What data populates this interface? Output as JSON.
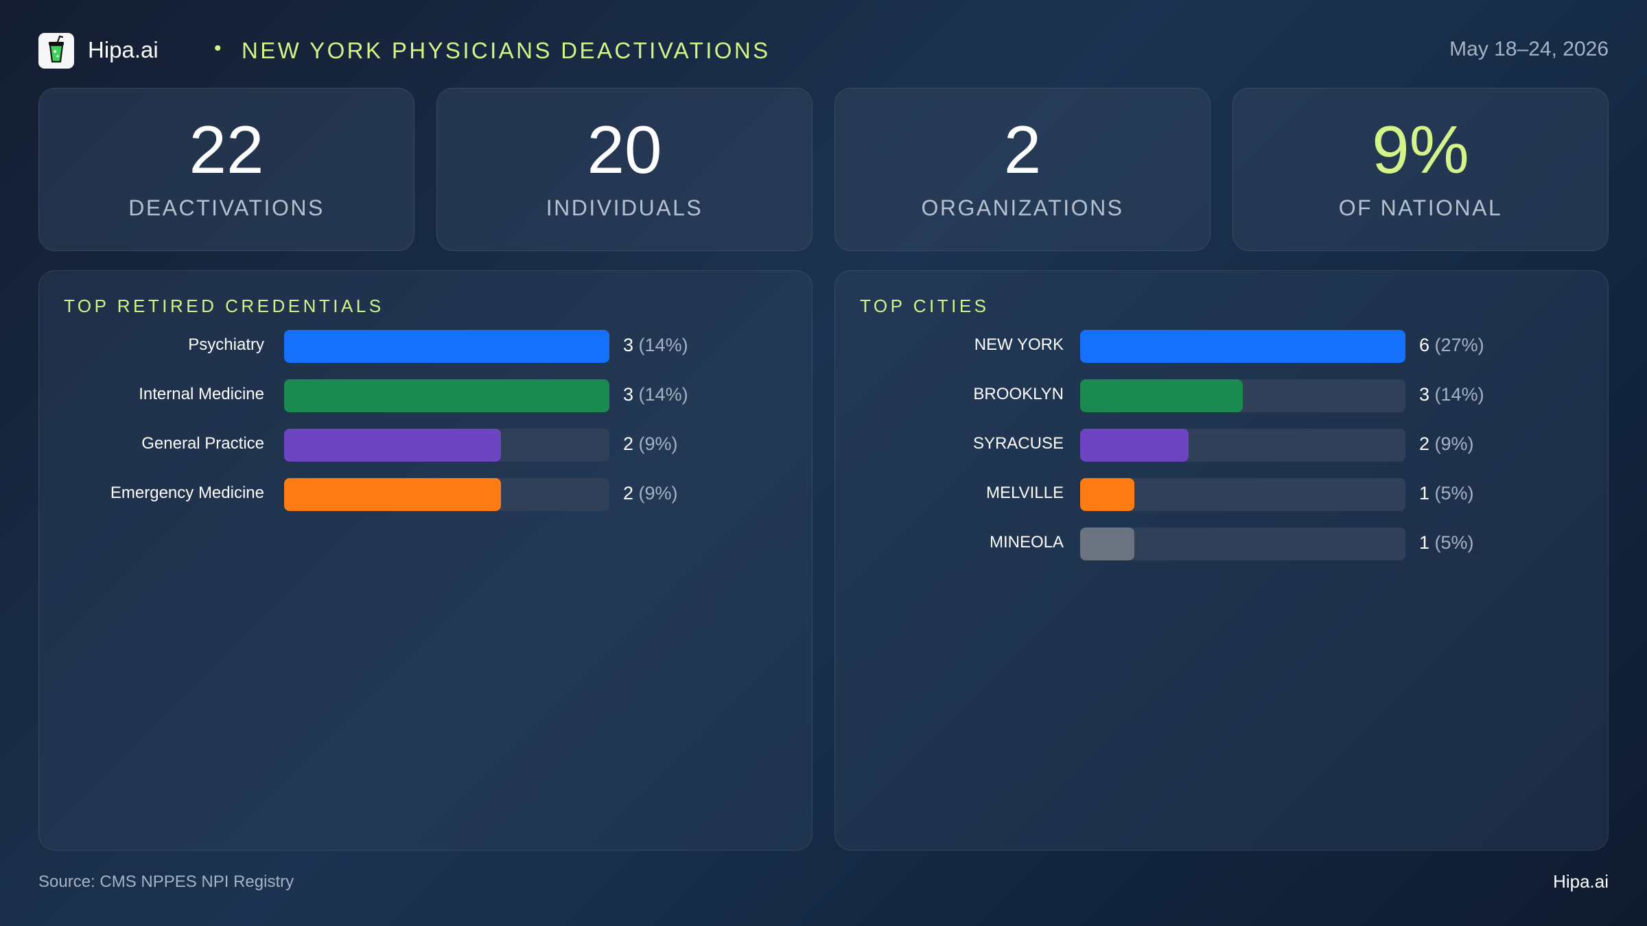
{
  "header": {
    "brand": "Hipa.ai",
    "separator": "•",
    "title": "NEW YORK PHYSICIANS DEACTIVATIONS",
    "date": "May 18–24, 2026",
    "logo_icon": "cup-logo-icon"
  },
  "stats": [
    {
      "value": "22",
      "label": "DEACTIVATIONS"
    },
    {
      "value": "20",
      "label": "INDIVIDUALS"
    },
    {
      "value": "2",
      "label": "ORGANIZATIONS"
    },
    {
      "value": "9%",
      "label": "OF NATIONAL"
    }
  ],
  "colors": {
    "accent": "#d4f48a",
    "blue": "#1570fb",
    "green": "#1b8a50",
    "purple": "#6d45c2",
    "orange": "#fd7d14",
    "gray": "#6b7280",
    "track": "#2f4058"
  },
  "chart_data": [
    {
      "type": "bar",
      "orientation": "horizontal",
      "title": "TOP RETIRED CREDENTIALS",
      "categories": [
        "Psychiatry",
        "Internal Medicine",
        "General Practice",
        "Emergency Medicine"
      ],
      "values": [
        3,
        3,
        2,
        2
      ],
      "value_labels": [
        "3",
        "3",
        "2",
        "2"
      ],
      "percent_labels": [
        "(14%)",
        "(14%)",
        "(9%)",
        "(9%)"
      ],
      "colors": [
        "#1570fb",
        "#1b8a50",
        "#6d45c2",
        "#fd7d14"
      ],
      "xlim": [
        0,
        3
      ]
    },
    {
      "type": "bar",
      "orientation": "horizontal",
      "title": "TOP CITIES",
      "categories": [
        "NEW YORK",
        "BROOKLYN",
        "SYRACUSE",
        "MELVILLE",
        "MINEOLA"
      ],
      "values": [
        6,
        3,
        2,
        1,
        1
      ],
      "value_labels": [
        "6",
        "3",
        "2",
        "1",
        "1"
      ],
      "percent_labels": [
        "(27%)",
        "(14%)",
        "(9%)",
        "(5%)",
        "(5%)"
      ],
      "colors": [
        "#1570fb",
        "#1b8a50",
        "#6d45c2",
        "#fd7d14",
        "#6b7280"
      ],
      "xlim": [
        0,
        6
      ]
    }
  ],
  "footer": {
    "source": "Source: CMS NPPES NPI Registry",
    "brand": "Hipa.ai"
  }
}
